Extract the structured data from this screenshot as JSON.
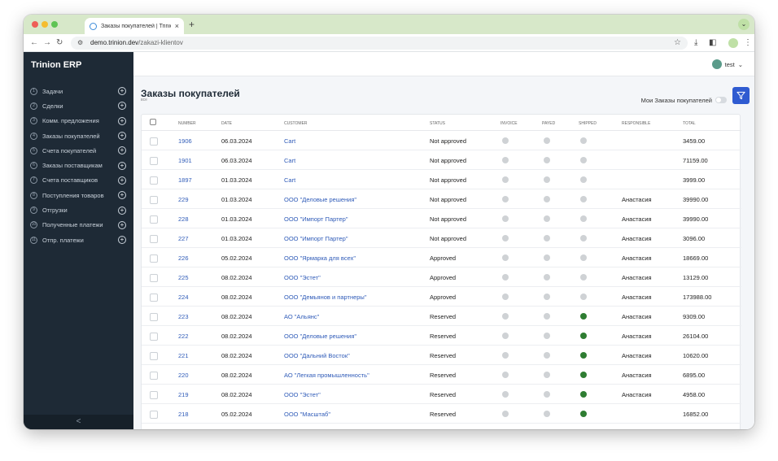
{
  "browser": {
    "tab_title": "Заказы покупателей | Trinion",
    "tab_close": "×",
    "new_tab": "+",
    "url_host": "demo.trinion.dev",
    "url_path": "/zakazi-klientov"
  },
  "app": {
    "brand": "Trinion ERP",
    "user": "test"
  },
  "sidebar": {
    "items": [
      {
        "num": "1",
        "label": "Задачи"
      },
      {
        "num": "2",
        "label": "Сделки"
      },
      {
        "num": "3",
        "label": "Комм. предложения"
      },
      {
        "num": "4",
        "label": "Заказы покупателей"
      },
      {
        "num": "5",
        "label": "Счета покупателей"
      },
      {
        "num": "6",
        "label": "Заказы поставщикам"
      },
      {
        "num": "7",
        "label": "Счета поставщиков"
      },
      {
        "num": "8",
        "label": "Поступления товаров"
      },
      {
        "num": "9",
        "label": "Отгрузки"
      },
      {
        "num": "10",
        "label": "Полученные платежи"
      },
      {
        "num": "11",
        "label": "Отпр. платежи"
      }
    ],
    "collapse": "<"
  },
  "page": {
    "title": "Заказы покупателей",
    "subtitle": "все",
    "my_orders_label": "Мои Заказы покупателей"
  },
  "table": {
    "headers": [
      "Number",
      "Date",
      "Customer",
      "Status",
      "Invoice",
      "Payed",
      "Shipped",
      "Responsible",
      "Total"
    ],
    "rows": [
      {
        "number": "1906",
        "date": "06.03.2024",
        "customer": "Cart",
        "status": "Not approved",
        "responsible": "",
        "total": "3459.00",
        "shipped": false
      },
      {
        "number": "1901",
        "date": "06.03.2024",
        "customer": "Cart",
        "status": "Not approved",
        "responsible": "",
        "total": "71159.00",
        "shipped": false
      },
      {
        "number": "1897",
        "date": "01.03.2024",
        "customer": "Cart",
        "status": "Not approved",
        "responsible": "",
        "total": "3999.00",
        "shipped": false
      },
      {
        "number": "229",
        "date": "01.03.2024",
        "customer": "ООО \"Деловые решения\"",
        "status": "Not approved",
        "responsible": "Анастасия",
        "total": "39990.00",
        "shipped": false
      },
      {
        "number": "228",
        "date": "01.03.2024",
        "customer": "ООО \"Импорт Партер\"",
        "status": "Not approved",
        "responsible": "Анастасия",
        "total": "39990.00",
        "shipped": false
      },
      {
        "number": "227",
        "date": "01.03.2024",
        "customer": "ООО \"Импорт Партер\"",
        "status": "Not approved",
        "responsible": "Анастасия",
        "total": "3096.00",
        "shipped": false
      },
      {
        "number": "226",
        "date": "05.02.2024",
        "customer": "ООО \"Ярмарка для всех\"",
        "status": "Approved",
        "responsible": "Анастасия",
        "total": "18669.00",
        "shipped": false
      },
      {
        "number": "225",
        "date": "08.02.2024",
        "customer": "ООО \"Эстет\"",
        "status": "Approved",
        "responsible": "Анастасия",
        "total": "13129.00",
        "shipped": false
      },
      {
        "number": "224",
        "date": "08.02.2024",
        "customer": "ООО \"Демьянов и партнеры\"",
        "status": "Approved",
        "responsible": "Анастасия",
        "total": "173988.00",
        "shipped": false
      },
      {
        "number": "223",
        "date": "08.02.2024",
        "customer": "АО \"Альянс\"",
        "status": "Reserved",
        "responsible": "Анастасия",
        "total": "9309.00",
        "shipped": true
      },
      {
        "number": "222",
        "date": "08.02.2024",
        "customer": "ООО \"Деловые решения\"",
        "status": "Reserved",
        "responsible": "Анастасия",
        "total": "26104.00",
        "shipped": true
      },
      {
        "number": "221",
        "date": "08.02.2024",
        "customer": "ООО \"Дальний Восток\"",
        "status": "Reserved",
        "responsible": "Анастасия",
        "total": "10620.00",
        "shipped": true
      },
      {
        "number": "220",
        "date": "08.02.2024",
        "customer": "АО \"Легкая промышленность\"",
        "status": "Reserved",
        "responsible": "Анастасия",
        "total": "6895.00",
        "shipped": true
      },
      {
        "number": "219",
        "date": "08.02.2024",
        "customer": "ООО \"Эстет\"",
        "status": "Reserved",
        "responsible": "Анастасия",
        "total": "4958.00",
        "shipped": true
      },
      {
        "number": "218",
        "date": "05.02.2024",
        "customer": "ООО \"Масштаб\"",
        "status": "Reserved",
        "responsible": "",
        "total": "16852.00",
        "shipped": true
      }
    ]
  },
  "colors": {
    "sidebar_bg": "#1e2a36",
    "accent": "#2f5bd1",
    "link": "#2f5bb8",
    "status_on": "#2e7d32",
    "status_off": "#cfd2d5"
  }
}
